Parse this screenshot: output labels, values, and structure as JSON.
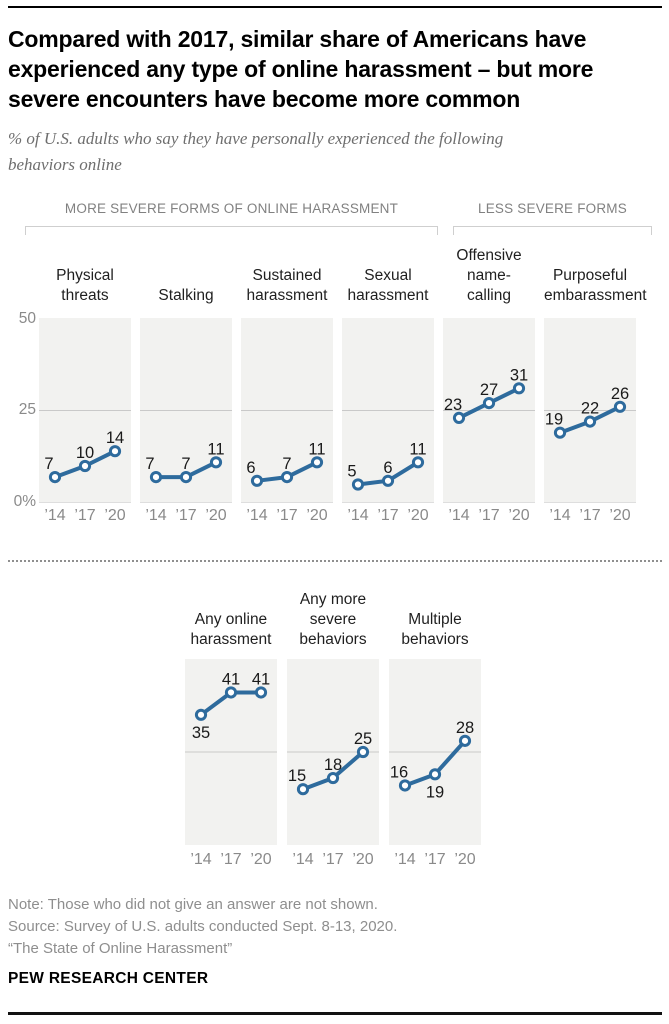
{
  "header": {
    "title": "Compared with 2017, similar share of Americans have experienced any type of online harassment – but more severe encounters have become more common",
    "title_lines": [
      "Compared with 2017, similar share of Americans have",
      "experienced any type of online harassment – but more",
      "severe encounters have become more common"
    ],
    "subtitle_lines": [
      "% of U.S. adults who say they have personally experienced the following",
      "behaviors online"
    ]
  },
  "group_labels": {
    "more_severe": "MORE SEVERE FORMS OF ONLINE HARASSMENT",
    "less_severe": "LESS SEVERE FORMS"
  },
  "chart_data": {
    "type": "line",
    "title": "Compared with 2017, similar share of Americans have experienced any type of online harassment – but more severe encounters have become more common",
    "subtitle": "% of U.S. adults who say they have personally experienced the following behaviors online",
    "x": [
      "’14",
      "’17",
      "’20"
    ],
    "ylim": [
      0,
      50
    ],
    "y_ticks": [
      "50",
      "25",
      "0%"
    ],
    "gridline_value": 25,
    "grid": "single horizontal gridline at 25",
    "legend_position": "none",
    "line_color": "#2e6b9d",
    "marker": "open-circle",
    "rows": [
      {
        "name": "row1",
        "panels": [
          {
            "title": "Physical threats",
            "title_lines": [
              "Physical",
              "threats"
            ],
            "group": "more_severe",
            "values": [
              7,
              10,
              14
            ],
            "label_positions": [
              "above",
              "above",
              "above"
            ]
          },
          {
            "title": "Stalking",
            "title_lines": [
              "Stalking"
            ],
            "group": "more_severe",
            "values": [
              7,
              7,
              11
            ],
            "label_positions": [
              "above",
              "above",
              "above"
            ]
          },
          {
            "title": "Sustained harassment",
            "title_lines": [
              "Sustained",
              "harassment"
            ],
            "group": "more_severe",
            "values": [
              6,
              7,
              11
            ],
            "label_positions": [
              "above",
              "above",
              "above"
            ]
          },
          {
            "title": "Sexual harassment",
            "title_lines": [
              "Sexual",
              "harassment"
            ],
            "group": "more_severe",
            "values": [
              5,
              6,
              11
            ],
            "label_positions": [
              "above",
              "above",
              "above"
            ]
          },
          {
            "title": "Offensive name-calling",
            "title_lines": [
              "Offensive",
              "name-",
              "calling"
            ],
            "group": "less_severe",
            "values": [
              23,
              27,
              31
            ],
            "label_positions": [
              "above",
              "above",
              "above"
            ]
          },
          {
            "title": "Purposeful embarassment",
            "title_lines": [
              "Purposeful",
              "embarassment"
            ],
            "group": "less_severe",
            "values": [
              19,
              22,
              26
            ],
            "label_positions": [
              "above",
              "above",
              "above"
            ]
          }
        ]
      },
      {
        "name": "row2",
        "panels": [
          {
            "title": "Any online harassment",
            "title_lines": [
              "Any online",
              "harassment"
            ],
            "values": [
              35,
              41,
              41
            ],
            "label_positions": [
              "below",
              "above",
              "above"
            ]
          },
          {
            "title": "Any more severe behaviors",
            "title_lines": [
              "Any more",
              "severe",
              "behaviors"
            ],
            "values": [
              15,
              18,
              25
            ],
            "label_positions": [
              "above",
              "above",
              "above"
            ]
          },
          {
            "title": "Multiple behaviors",
            "title_lines": [
              "Multiple",
              "behaviors"
            ],
            "values": [
              16,
              19,
              28
            ],
            "label_positions": [
              "above",
              "below",
              "above"
            ]
          }
        ]
      }
    ]
  },
  "footer": {
    "note": "Note: Those who did not give an answer are not shown.",
    "source": "Source: Survey of U.S. adults conducted Sept. 8-13, 2020.",
    "report": "“The State of Online Harassment”",
    "brand": "PEW RESEARCH CENTER"
  }
}
